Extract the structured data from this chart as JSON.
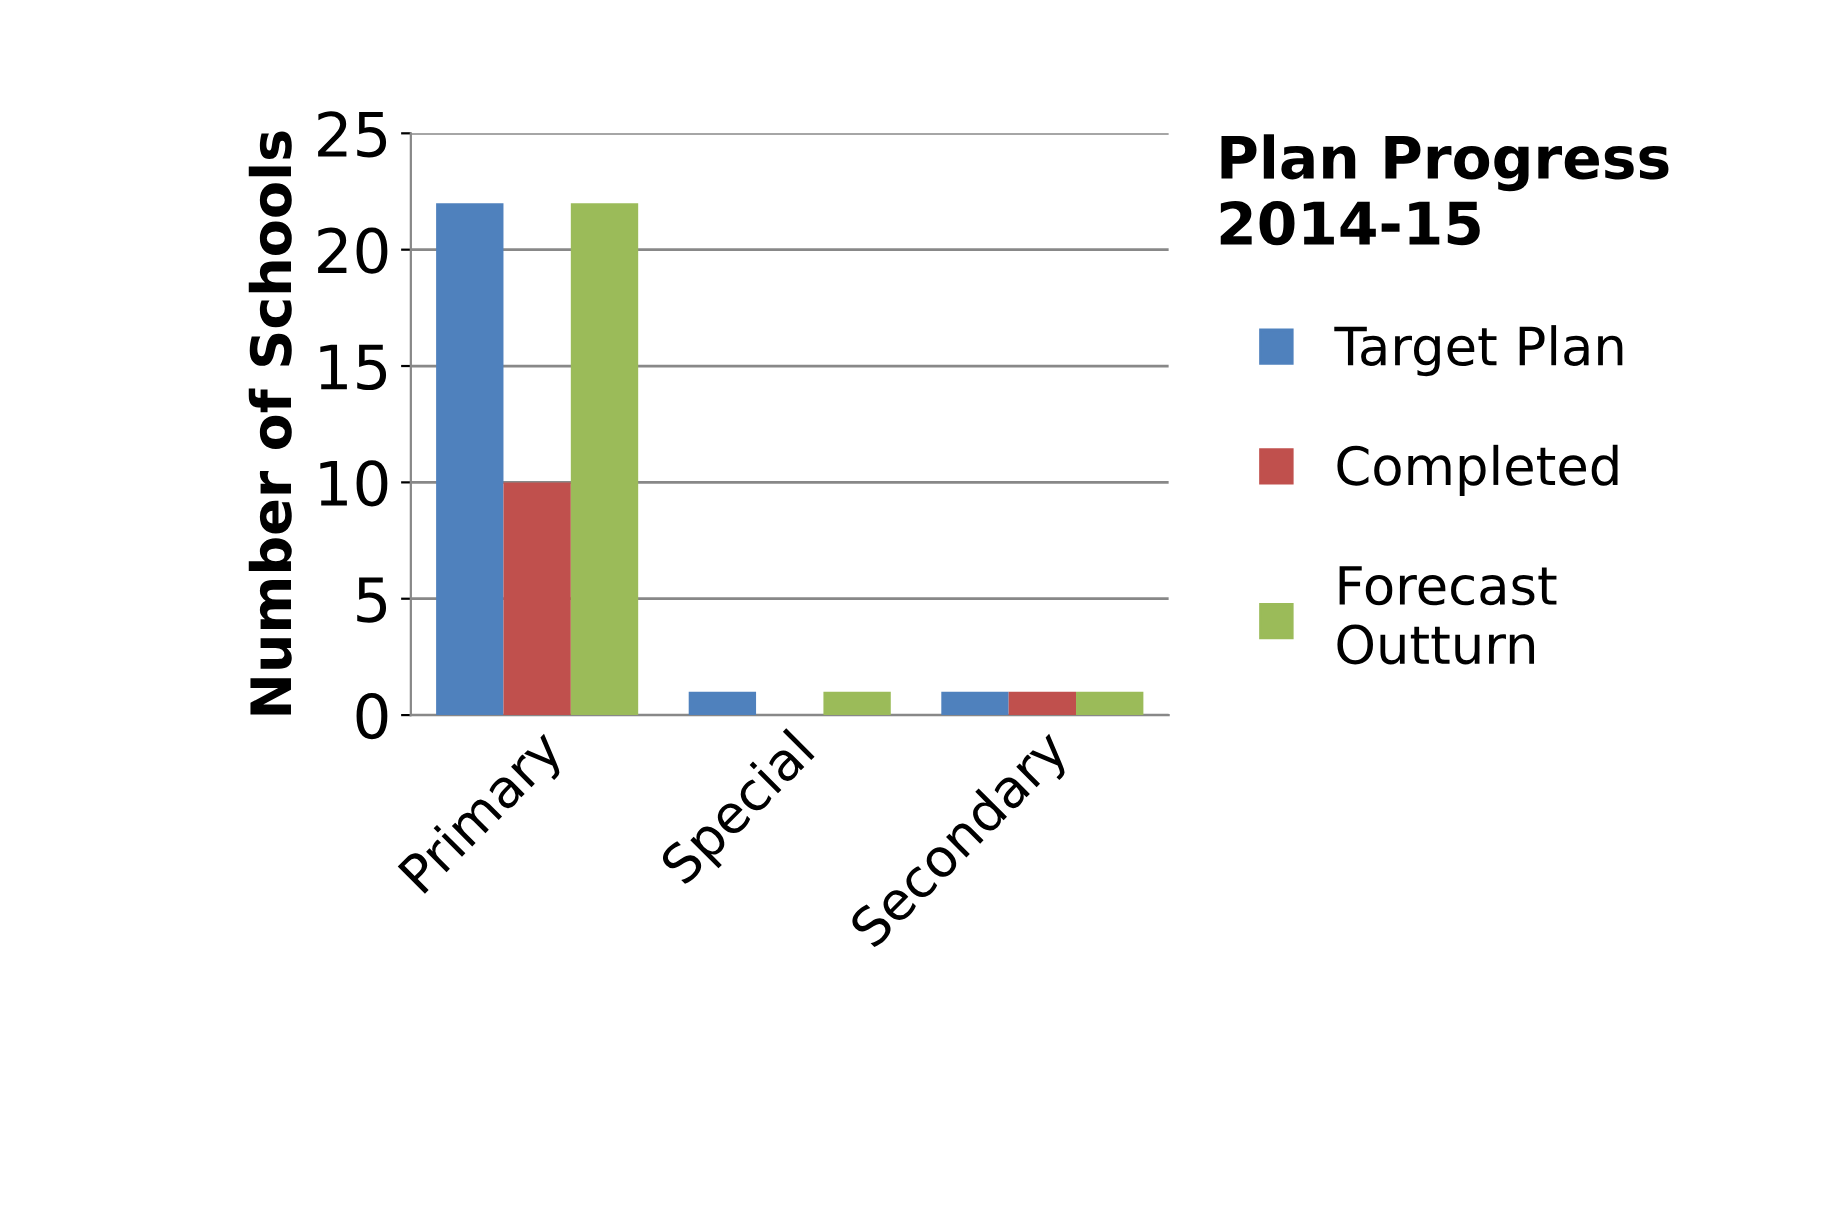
{
  "chart_data": {
    "type": "bar",
    "ylabel": "Number of Schools",
    "legend_title": "Plan Progress 2014-15",
    "categories": [
      "Primary",
      "Special",
      "Secondary"
    ],
    "series": [
      {
        "name": "Target Plan",
        "color": "#4f81bd",
        "values": [
          22,
          1,
          1
        ]
      },
      {
        "name": "Completed",
        "color": "#c0504d",
        "values": [
          10,
          0,
          1
        ]
      },
      {
        "name": "Forecast Outturn",
        "color": "#9bbb59",
        "values": [
          22,
          1,
          1
        ]
      }
    ],
    "ylim": [
      0,
      25
    ],
    "yticks": [
      0,
      5,
      10,
      15,
      20,
      25
    ],
    "grid": "y",
    "legend": "right"
  }
}
